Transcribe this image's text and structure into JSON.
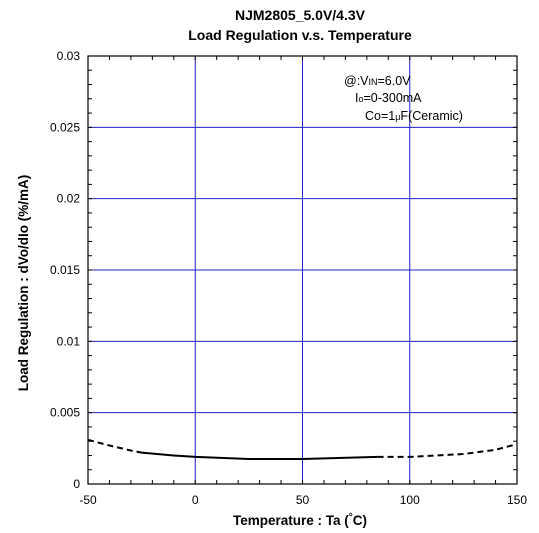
{
  "chart_data": {
    "type": "line",
    "title": "NJM2805_5.0V/4.3V",
    "subtitle": "Load Regulation v.s. Temperature",
    "xlabel": "Temperature : Ta (",
    "xlabel_unit": "°C)",
    "ylabel": "Load Regulation : dVo/dIo (%/mA)",
    "xlim": [
      -50,
      150
    ],
    "ylim": [
      0,
      0.03
    ],
    "x_ticks": [
      "-50",
      "0",
      "50",
      "100",
      "150"
    ],
    "y_ticks": [
      "0",
      "0.005",
      "0.01",
      "0.015",
      "0.02",
      "0.025",
      "0.03"
    ],
    "grid": true,
    "annotations": {
      "line1_prefix": "@:V",
      "line1_sub": "IN",
      "line1_value": "=6.0V",
      "line2_prefix": "I",
      "line2_sub": "o",
      "line2_value": "=0-300mA",
      "line3_prefix": "Co=1",
      "line3_mu": "μ",
      "line3_value": "F(Ceramic)"
    },
    "series": [
      {
        "segments": [
          {
            "style": "dashed",
            "x": [
              -50,
              -40,
              -30,
              -25
            ],
            "y": [
              0.0031,
              0.0027,
              0.00235,
              0.0022
            ]
          },
          {
            "style": "solid",
            "x": [
              -25,
              -10,
              0,
              25,
              50,
              85
            ],
            "y": [
              0.0022,
              0.002,
              0.0019,
              0.00175,
              0.00175,
              0.0019
            ]
          },
          {
            "style": "dashed",
            "x": [
              85,
              100,
              125,
              140,
              150
            ],
            "y": [
              0.0019,
              0.0019,
              0.0021,
              0.0024,
              0.0028
            ]
          }
        ]
      }
    ],
    "colors": {
      "grid": "#2020c8",
      "line": "#000000",
      "frame": "#000000"
    }
  }
}
